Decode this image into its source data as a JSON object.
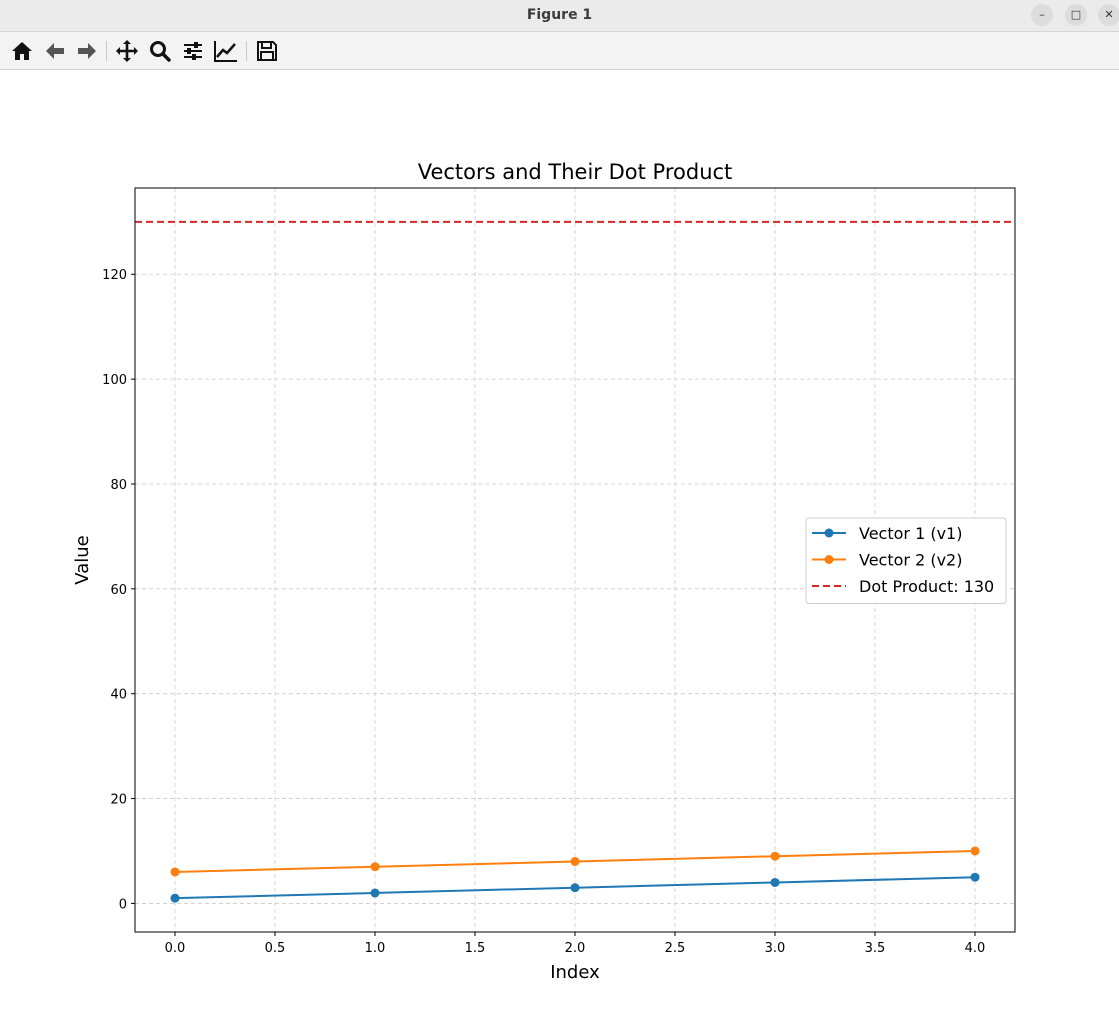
{
  "window": {
    "title": "Figure 1",
    "minimize_icon": "minimize-icon",
    "maximize_icon": "maximize-icon",
    "close_icon": "close-icon"
  },
  "toolbar": {
    "buttons": [
      {
        "icon": "home-icon"
      },
      {
        "icon": "back-arrow-icon"
      },
      {
        "icon": "forward-arrow-icon"
      },
      {
        "icon": "pan-move-icon"
      },
      {
        "icon": "zoom-magnifier-icon"
      },
      {
        "icon": "configure-subplots-icon"
      },
      {
        "icon": "edit-axes-icon"
      },
      {
        "icon": "save-floppy-icon"
      }
    ]
  },
  "colors": {
    "series1": "#1f77b4",
    "series2": "#ff7f0e",
    "dot_line": "#d62728",
    "grid": "#cccccc"
  },
  "chart_data": {
    "type": "line",
    "title": "Vectors and Their Dot Product",
    "xlabel": "Index",
    "ylabel": "Value",
    "xlim": [
      -0.2,
      4.2
    ],
    "ylim": [
      -5.45,
      136.45
    ],
    "xticks": [
      "0.0",
      "0.5",
      "1.0",
      "1.5",
      "2.0",
      "2.5",
      "3.0",
      "3.5",
      "4.0"
    ],
    "yticks": [
      "0",
      "20",
      "40",
      "60",
      "80",
      "100",
      "120"
    ],
    "grid": true,
    "grid_style": "dashed",
    "legend_position": "center-right",
    "x": [
      0,
      1,
      2,
      3,
      4
    ],
    "series": [
      {
        "name": "Vector 1 (v1)",
        "values": [
          1,
          2,
          3,
          4,
          5
        ],
        "color": "#1f77b4",
        "marker": "circle"
      },
      {
        "name": "Vector 2 (v2)",
        "values": [
          6,
          7,
          8,
          9,
          10
        ],
        "color": "#ff7f0e",
        "marker": "circle"
      }
    ],
    "hline": {
      "name": "Dot Product: 130",
      "value": 130,
      "color": "#d62728",
      "style": "dashed"
    }
  }
}
